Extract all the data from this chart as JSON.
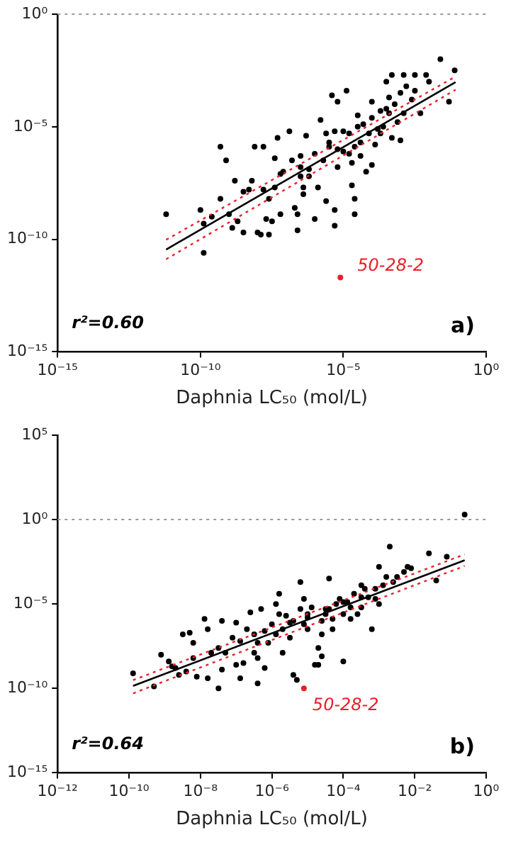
{
  "chart_data": [
    {
      "type": "scatter",
      "xlabel": "Daphnia LC₅₀ (mol/L)",
      "log": "xy",
      "grid": false,
      "legend": false,
      "marker": "circle",
      "xlim": [
        1e-15,
        1
      ],
      "xticks": [
        {
          "value": 1e-15,
          "label": "10⁻¹⁵"
        },
        {
          "value": 1e-10,
          "label": "10⁻¹⁰"
        },
        {
          "value": 1e-05,
          "label": "10⁻⁵"
        },
        {
          "value": 1,
          "label": "10⁰"
        }
      ],
      "ylim": [
        1e-15,
        1
      ],
      "yticks": [
        {
          "value": 1e-15,
          "label": "10⁻¹⁵"
        },
        {
          "value": 1e-10,
          "label": "10⁻¹⁰"
        },
        {
          "value": 1e-05,
          "label": "10⁻⁵"
        },
        {
          "value": 1,
          "label": "10⁰"
        }
      ],
      "ref_lines": [
        {
          "axis": "y",
          "value": 1,
          "color": "#999999",
          "line_style": "dotted"
        }
      ],
      "annotations": [
        "r²=0.60",
        "a)",
        {
          "text": "50-28-2",
          "x": 7.9e-06,
          "y": 2e-12
        }
      ],
      "series": [
        {
          "color": "#000000",
          "x": [
            6.3e-12,
            1e-10,
            1.3e-10,
            1.3e-10,
            2.5e-10,
            5e-10,
            5e-10,
            7.9e-10,
            1e-09,
            1.3e-09,
            1.6e-09,
            2e-09,
            3.2e-09,
            3.2e-09,
            5e-09,
            6.3e-09,
            7.9e-09,
            1e-08,
            1.3e-08,
            1.6e-08,
            1.6e-08,
            2e-08,
            2.5e-08,
            2.5e-08,
            3.2e-08,
            4e-08,
            4e-08,
            5e-08,
            6.3e-08,
            6.3e-08,
            7.9e-08,
            1.3e-07,
            1.6e-07,
            2e-07,
            2.5e-07,
            2.5e-07,
            3.2e-07,
            3.2e-07,
            4e-07,
            4e-07,
            5e-07,
            6.3e-07,
            6.3e-07,
            1e-06,
            1.3e-06,
            1.6e-06,
            2e-06,
            2.5e-06,
            2.5e-06,
            3.2e-06,
            4e-06,
            5e-06,
            5e-06,
            5e-06,
            6.3e-06,
            6.3e-06,
            1e-05,
            1.3e-05,
            1.6e-05,
            2e-05,
            2e-05,
            2.5e-05,
            2.5e-05,
            2.5e-05,
            3.2e-05,
            4e-05,
            4e-05,
            5e-05,
            6.3e-05,
            7.9e-05,
            0.0001,
            0.0001,
            0.00013,
            0.00016,
            0.0002,
            0.0002,
            0.00025,
            0.00032,
            0.0004,
            0.0004,
            0.0005,
            0.0005,
            0.00063,
            0.00079,
            0.001,
            0.001,
            0.0013,
            0.0013,
            0.0016,
            0.0025,
            0.0032,
            0.0032,
            0.005,
            0.0079,
            0.01,
            0.025,
            0.05,
            0.079,
            1e-06,
            3.2e-06,
            1e-05,
            3.2e-05,
            0.0001,
            0.00032,
            3.2e-07,
            6.3e-06,
            1.6e-05
          ],
          "values": [
            1.3e-09,
            2e-09,
            5e-10,
            2.5e-11,
            1e-09,
            6.3e-09,
            1.3e-06,
            3.2e-07,
            1.3e-09,
            3.2e-10,
            4e-08,
            6.3e-10,
            1.3e-08,
            2e-10,
            1.6e-08,
            4e-08,
            1.3e-06,
            2e-10,
            1.6e-10,
            1.3e-06,
            1.6e-08,
            7.9e-10,
            1.6e-10,
            6.3e-09,
            6.3e-10,
            2e-08,
            4e-07,
            3.2e-06,
            1.3e-09,
            7.9e-08,
            1e-07,
            6.3e-06,
            3.2e-07,
            2.5e-09,
            1.3e-09,
            2.5e-10,
            6.3e-08,
            5e-07,
            2e-08,
            1e-08,
            4e-06,
            6.3e-08,
            1.3e-07,
            7.9e-10,
            2e-08,
            2e-05,
            3.2e-07,
            5e-06,
            5e-09,
            1.3e-06,
            0.00025,
            6.3e-06,
            2e-09,
            4e-10,
            0.00013,
            1.6e-07,
            7.9e-07,
            0.0004,
            5e-06,
            2.5e-07,
            2.5e-08,
            1.3e-09,
            6.3e-09,
            1.3e-06,
            3.2e-05,
            5e-07,
            2e-06,
            1.3e-05,
            1e-07,
            5e-06,
            0.00013,
            2e-07,
            1.6e-06,
            7.9e-06,
            5e-05,
            5e-06,
            1e-05,
            0.001,
            0.0002,
            4e-05,
            3.2e-06,
            0.002,
            0.0001,
            1.6e-05,
            0.00032,
            2.5e-06,
            0.002,
            4e-05,
            0.00063,
            0.00016,
            0.002,
            0.0004,
            4e-05,
            0.002,
            0.001,
            0.01,
            0.00013,
            0.0032,
            6.3e-07,
            2e-06,
            6.3e-06,
            1e-05,
            2.5e-05,
            6.3e-05,
            1.6e-07,
            1e-06,
            6.3e-07
          ]
        },
        {
          "color": "#e8202a",
          "x": [
            7.9e-06
          ],
          "values": [
            2e-12
          ]
        },
        {
          "type": "line",
          "color": "#000000",
          "marker": "none",
          "line_style": "solid",
          "x": [
            6.3e-12,
            0.085
          ],
          "values": [
            3.5e-11,
            0.00095
          ]
        },
        {
          "type": "line",
          "color": "#e8202a",
          "marker": "none",
          "line_style": "dotted",
          "x": [
            6.3e-12,
            0.085
          ],
          "values": [
            9.5e-11,
            0.0017
          ]
        },
        {
          "type": "line",
          "color": "#e8202a",
          "marker": "none",
          "line_style": "dotted",
          "x": [
            6.3e-12,
            0.085
          ],
          "values": [
            1.3e-11,
            0.00044
          ]
        }
      ]
    },
    {
      "type": "scatter",
      "xlabel": "Daphnia LC₅₀ (mol/L)",
      "log": "xy",
      "grid": false,
      "legend": false,
      "marker": "circle",
      "xlim": [
        1e-12,
        1
      ],
      "xticks": [
        {
          "value": 1e-12,
          "label": "10⁻¹²"
        },
        {
          "value": 1e-10,
          "label": "10⁻¹⁰"
        },
        {
          "value": 1e-08,
          "label": "10⁻⁸"
        },
        {
          "value": 1e-06,
          "label": "10⁻⁶"
        },
        {
          "value": 0.0001,
          "label": "10⁻⁴"
        },
        {
          "value": 0.01,
          "label": "10⁻²"
        },
        {
          "value": 1,
          "label": "10⁰"
        }
      ],
      "ylim": [
        1e-15,
        100000.0
      ],
      "yticks": [
        {
          "value": 1e-15,
          "label": "10⁻¹⁵"
        },
        {
          "value": 1e-10,
          "label": "10⁻¹⁰"
        },
        {
          "value": 1e-05,
          "label": "10⁻⁵"
        },
        {
          "value": 1,
          "label": "10⁰"
        },
        {
          "value": 100000.0,
          "label": "10⁵"
        }
      ],
      "ref_lines": [
        {
          "axis": "y",
          "value": 1,
          "color": "#999999",
          "line_style": "dotted"
        }
      ],
      "annotations": [
        "r²=0.64",
        "b)",
        {
          "text": "50-28-2",
          "x": 7.9e-06,
          "y": 1e-10
        }
      ],
      "series": [
        {
          "color": "#000000",
          "x": [
            1.3e-10,
            5e-10,
            7.9e-10,
            1.3e-09,
            1.6e-09,
            2e-09,
            2.5e-09,
            3.2e-09,
            4e-09,
            5e-09,
            6.3e-09,
            6.3e-09,
            7.9e-09,
            1.3e-08,
            1.6e-08,
            1.6e-08,
            2e-08,
            3.2e-08,
            4e-08,
            4e-08,
            5e-08,
            7.9e-08,
            1e-07,
            1e-07,
            1.3e-07,
            1.3e-07,
            1.6e-07,
            2e-07,
            2.5e-07,
            3.2e-07,
            4e-07,
            4e-07,
            4e-07,
            5e-07,
            6.3e-07,
            6.3e-07,
            7.9e-07,
            1e-06,
            1.3e-06,
            1.3e-06,
            1.6e-06,
            1.6e-06,
            2e-06,
            2e-06,
            2.5e-06,
            3.2e-06,
            4e-06,
            4e-06,
            5e-06,
            6.3e-06,
            6.3e-06,
            7.9e-06,
            7.9e-06,
            1e-05,
            1e-05,
            1.3e-05,
            1.6e-05,
            2e-05,
            2e-05,
            2.5e-05,
            2.5e-05,
            2.5e-05,
            3.2e-05,
            4e-05,
            4e-05,
            5e-05,
            5e-05,
            6.3e-05,
            7.9e-05,
            0.0001,
            0.0001,
            0.00013,
            0.00016,
            0.00016,
            0.0002,
            0.00025,
            0.00032,
            0.00032,
            0.0004,
            0.0005,
            0.00063,
            0.00079,
            0.00079,
            0.001,
            0.001,
            0.0013,
            0.0016,
            0.002,
            0.0025,
            0.0032,
            0.005,
            0.0063,
            0.0079,
            0.025,
            0.04,
            0.079,
            0.25,
            3.2e-07,
            3.2e-06,
            3.2e-05,
            0.00032,
            3.2e-08,
            1e-05,
            0.0001
          ],
          "values": [
            7.9e-10,
            1.3e-10,
            1e-08,
            4e-09,
            2e-09,
            1.6e-09,
            6.3e-10,
            1.6e-07,
            1e-09,
            2e-07,
            5e-08,
            6.3e-09,
            5e-10,
            1.3e-06,
            3.2e-07,
            4e-10,
            1.3e-08,
            1e-10,
            1.3e-09,
            1e-06,
            1.3e-08,
            1e-07,
            7.9e-07,
            2.5e-09,
            4e-10,
            6.3e-08,
            3.2e-09,
            3.2e-07,
            3.2e-06,
            1.3e-08,
            5e-08,
            6.3e-09,
            2e-10,
            5e-06,
            1.6e-09,
            2.5e-07,
            5e-08,
            6.3e-07,
            1.6e-07,
            1e-05,
            2.5e-06,
            4e-05,
            1.3e-08,
            3.2e-07,
            2e-06,
            1e-07,
            6.3e-10,
            1e-06,
            3.2e-10,
            0.0002,
            5e-06,
            6.3e-07,
            2e-05,
            3.2e-07,
            2.5e-06,
            6.3e-06,
            2.5e-09,
            2.5e-08,
            2.5e-09,
            1e-06,
            7.9e-09,
            1.6e-07,
            2.5e-06,
            0.00032,
            5e-06,
            1.3e-06,
            3.2e-07,
            1e-05,
            2e-05,
            2.5e-06,
            4e-09,
            1.3e-05,
            1.3e-06,
            6.3e-06,
            4e-05,
            2.5e-06,
            0.00013,
            6.3e-06,
            7.9e-05,
            2.5e-05,
            3.2e-07,
            7.9e-05,
            2e-05,
            0.0016,
            1e-05,
            0.00013,
            0.0004,
            0.025,
            0.0002,
            0.0004,
            0.00079,
            0.0016,
            0.0013,
            0.01,
            0.00025,
            0.0063,
            2,
            1.6e-07,
            7.9e-07,
            5e-06,
            2.5e-05,
            2.5e-08,
            1.6e-06,
            1.3e-05
          ]
        },
        {
          "color": "#e8202a",
          "x": [
            7.9e-06
          ],
          "values": [
            1e-10
          ]
        },
        {
          "type": "line",
          "color": "#000000",
          "marker": "none",
          "line_style": "solid",
          "x": [
            1.3e-10,
            0.25
          ],
          "values": [
            1.4e-10,
            0.0039
          ]
        },
        {
          "type": "line",
          "color": "#e8202a",
          "marker": "none",
          "line_style": "dotted",
          "x": [
            1.3e-10,
            0.25
          ],
          "values": [
            3.1e-10,
            0.0087
          ]
        },
        {
          "type": "line",
          "color": "#e8202a",
          "marker": "none",
          "line_style": "dotted",
          "x": [
            1.3e-10,
            0.25
          ],
          "values": [
            5.1e-11,
            0.0018
          ]
        }
      ]
    }
  ]
}
